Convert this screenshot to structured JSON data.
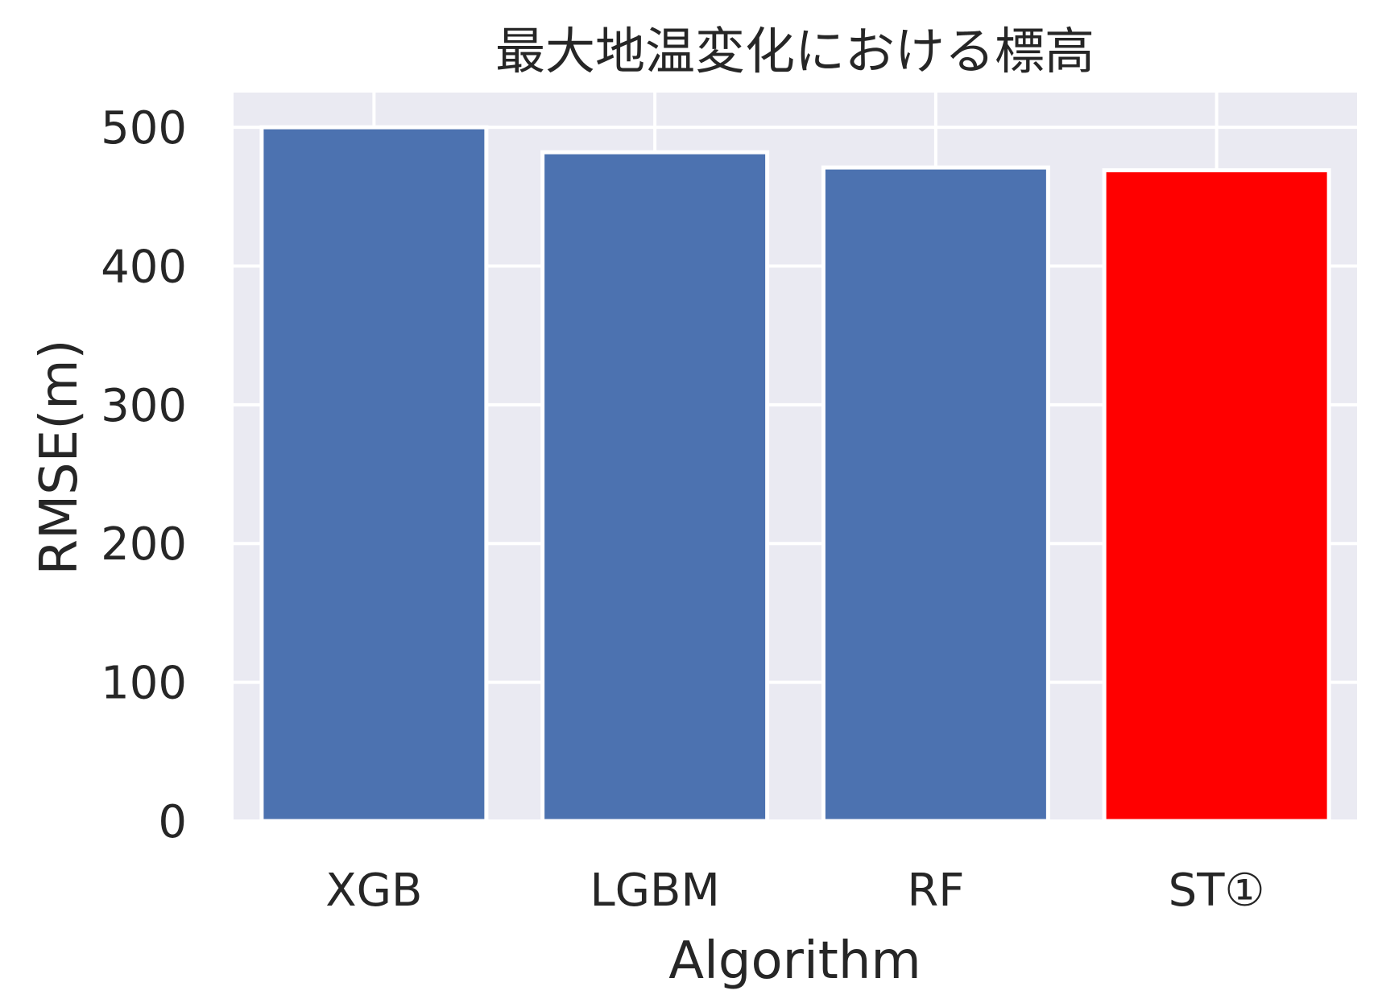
{
  "chart_data": {
    "type": "bar",
    "title": "最大地温変化における標高",
    "xlabel": "Algorithm",
    "ylabel": "RMSE(m)",
    "categories": [
      "XGB",
      "LGBM",
      "RF",
      "ST①"
    ],
    "values": [
      500,
      482,
      471,
      469
    ],
    "bar_colors": [
      "#4c72b0",
      "#4c72b0",
      "#4c72b0",
      "#ff0000"
    ],
    "ylim": [
      0,
      525
    ],
    "yticks": [
      0,
      100,
      200,
      300,
      400,
      500
    ],
    "grid": true,
    "background_color": "#eaeaf2"
  }
}
